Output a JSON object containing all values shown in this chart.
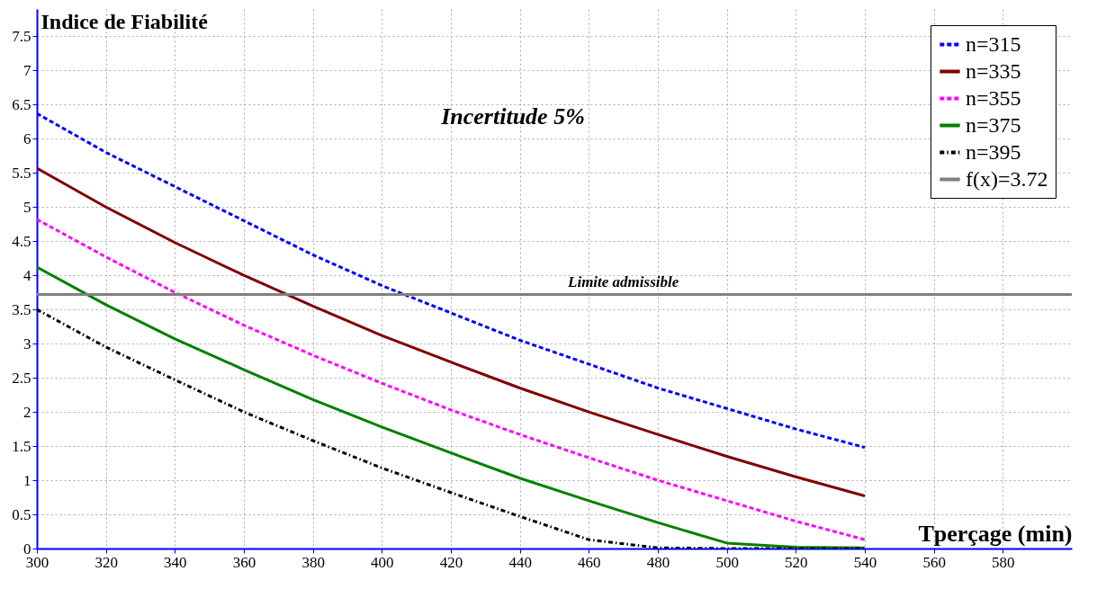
{
  "chart_data": {
    "type": "line",
    "xlabel": "Tperçage (min)",
    "ylabel": "Indice de Fiabilité",
    "annotations": [
      "Incertitude 5%",
      {
        "text": "Limite admissible",
        "x": 470,
        "y": 3.72
      }
    ],
    "x": [
      300,
      320,
      340,
      360,
      380,
      400,
      420,
      440,
      460,
      480,
      500,
      520,
      540
    ],
    "series": [
      {
        "name": "n=315",
        "color": "#0000ff",
        "line_style": "dashed",
        "values": [
          6.37,
          5.8,
          5.3,
          4.8,
          4.3,
          3.85,
          3.45,
          3.05,
          2.7,
          2.35,
          2.05,
          1.75,
          1.48
        ]
      },
      {
        "name": "n=335",
        "color": "#800000",
        "line_style": "solid",
        "values": [
          5.57,
          5.0,
          4.48,
          4.0,
          3.55,
          3.12,
          2.73,
          2.35,
          2.0,
          1.67,
          1.35,
          1.05,
          0.77
        ]
      },
      {
        "name": "n=355",
        "color": "#ff00ff",
        "line_style": "dashed",
        "values": [
          4.82,
          4.27,
          3.75,
          3.27,
          2.83,
          2.42,
          2.03,
          1.67,
          1.33,
          1.0,
          0.7,
          0.4,
          0.13
        ]
      },
      {
        "name": "n=375",
        "color": "#008000",
        "line_style": "solid",
        "values": [
          4.12,
          3.57,
          3.07,
          2.62,
          2.18,
          1.78,
          1.4,
          1.03,
          0.7,
          0.38,
          0.08,
          0.02,
          0.01
        ]
      },
      {
        "name": "n=395",
        "color": "#000000",
        "line_style": "dotted",
        "values": [
          3.5,
          2.95,
          2.47,
          2.0,
          1.58,
          1.18,
          0.82,
          0.47,
          0.13,
          0.01,
          0,
          0,
          0
        ]
      },
      {
        "name": "f(x)=3.72",
        "color": "#808080",
        "line_style": "solid",
        "x": [
          300,
          600
        ],
        "values": [
          3.72,
          3.72
        ]
      }
    ],
    "xlim": [
      300,
      600
    ],
    "xticks": [
      300,
      320,
      340,
      360,
      380,
      400,
      420,
      440,
      460,
      480,
      500,
      520,
      540,
      560,
      580
    ],
    "ylim": [
      0,
      7.9
    ],
    "yticks": [
      0,
      0.5,
      1,
      1.5,
      2,
      2.5,
      3,
      3.5,
      4,
      4.5,
      5,
      5.5,
      6,
      6.5,
      7,
      7.5
    ],
    "grid": true,
    "legend": "top right",
    "marker": "none"
  }
}
